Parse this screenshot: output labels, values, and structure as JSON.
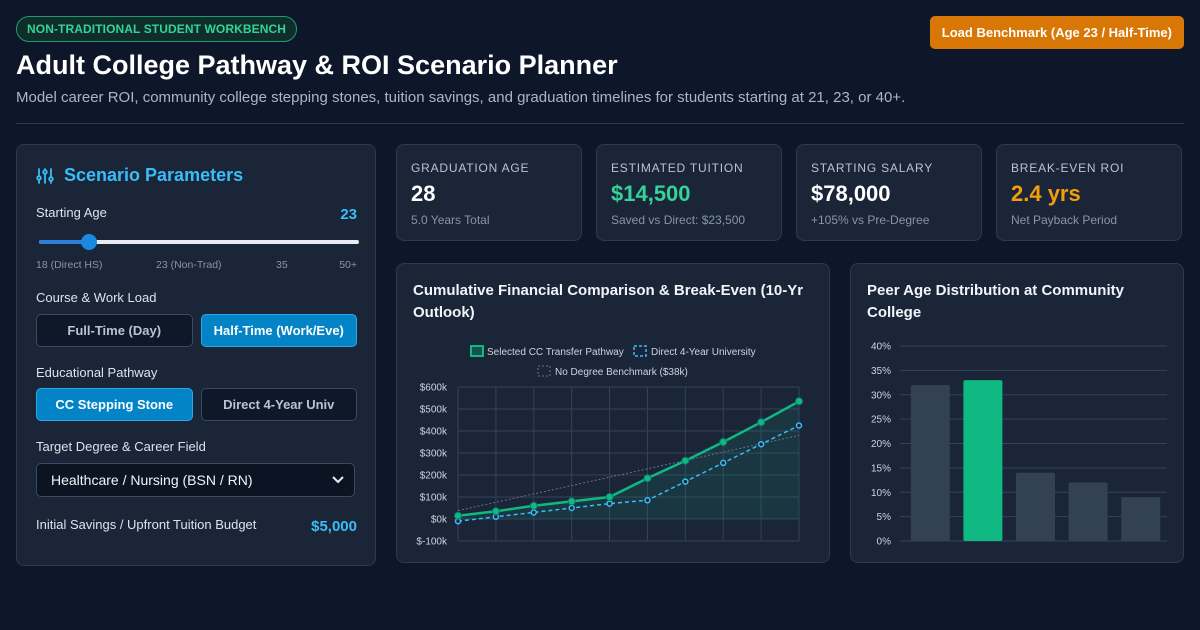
{
  "header": {
    "tag": "NON-TRADITIONAL STUDENT WORKBENCH",
    "title": "Adult College Pathway & ROI Scenario Planner",
    "subtitle": "Model career ROI, community college stepping stones, tuition savings, and graduation timelines for students starting at 21, 23, or 40+.",
    "load_button": "Load Benchmark (Age 23 / Half-Time)"
  },
  "params": {
    "title": "Scenario Parameters",
    "starting_age_label": "Starting Age",
    "starting_age_value": "23",
    "slider_fraction": 0.156,
    "ticks": [
      "18 (Direct HS)",
      "23 (Non-Trad)",
      "35",
      "50+"
    ],
    "workload_label": "Course & Work Load",
    "workload_options": [
      "Full-Time (Day)",
      "Half-Time (Work/Eve)"
    ],
    "workload_active": 1,
    "pathway_label": "Educational Pathway",
    "pathway_options": [
      "CC Stepping Stone",
      "Direct 4-Year Univ"
    ],
    "pathway_active": 0,
    "degree_label": "Target Degree & Career Field",
    "degree_value": "Healthcare / Nursing (BSN / RN)",
    "savings_label": "Initial Savings / Upfront Tuition Budget",
    "savings_value": "$5,000"
  },
  "cards": [
    {
      "key": "GRADUATION AGE",
      "value": "28",
      "sub": "5.0 Years Total",
      "color": "#ffffff"
    },
    {
      "key": "ESTIMATED TUITION",
      "value": "$14,500",
      "sub": "Saved vs Direct: $23,500",
      "color": "#34d399"
    },
    {
      "key": "STARTING SALARY",
      "value": "$78,000",
      "sub": "+105% vs Pre-Degree",
      "color": "#ffffff"
    },
    {
      "key": "BREAK-EVEN ROI",
      "value": "2.4 yrs",
      "sub": "Net Payback Period",
      "color": "#f59e0b"
    }
  ],
  "colors": {
    "accent": "#38bdf8",
    "green": "#10b981",
    "blue": "#38bdf8",
    "orange": "#d97706"
  },
  "chart_data": [
    {
      "type": "line",
      "title": "Cumulative Financial Comparison & Break-Even (10-Yr Outlook)",
      "y_ticks": [
        "$600k",
        "$500k",
        "$400k",
        "$300k",
        "$200k",
        "$100k",
        "$0k",
        "$-100k"
      ],
      "ylim": [
        -100,
        600
      ],
      "x": [
        0,
        1,
        2,
        3,
        4,
        5,
        6,
        7,
        8,
        9
      ],
      "series": [
        {
          "name": "Selected CC Transfer Pathway",
          "values": [
            15,
            35,
            60,
            80,
            100,
            185,
            265,
            350,
            440,
            535
          ]
        },
        {
          "name": "Direct 4-Year University",
          "values": [
            -10,
            10,
            30,
            50,
            70,
            85,
            170,
            255,
            340,
            425
          ]
        },
        {
          "name": "No Degree Benchmark ($38k)",
          "values": [
            38,
            76,
            114,
            152,
            190,
            228,
            266,
            304,
            342,
            380
          ]
        }
      ]
    },
    {
      "type": "bar",
      "title": "Peer Age Distribution at Community College",
      "y_ticks": [
        "40%",
        "35%",
        "30%",
        "25%",
        "20%",
        "15%",
        "10%",
        "5%",
        "0%"
      ],
      "ylim": [
        0,
        40
      ],
      "values": [
        32,
        33,
        14,
        12,
        9
      ],
      "highlight_index": 1
    }
  ]
}
